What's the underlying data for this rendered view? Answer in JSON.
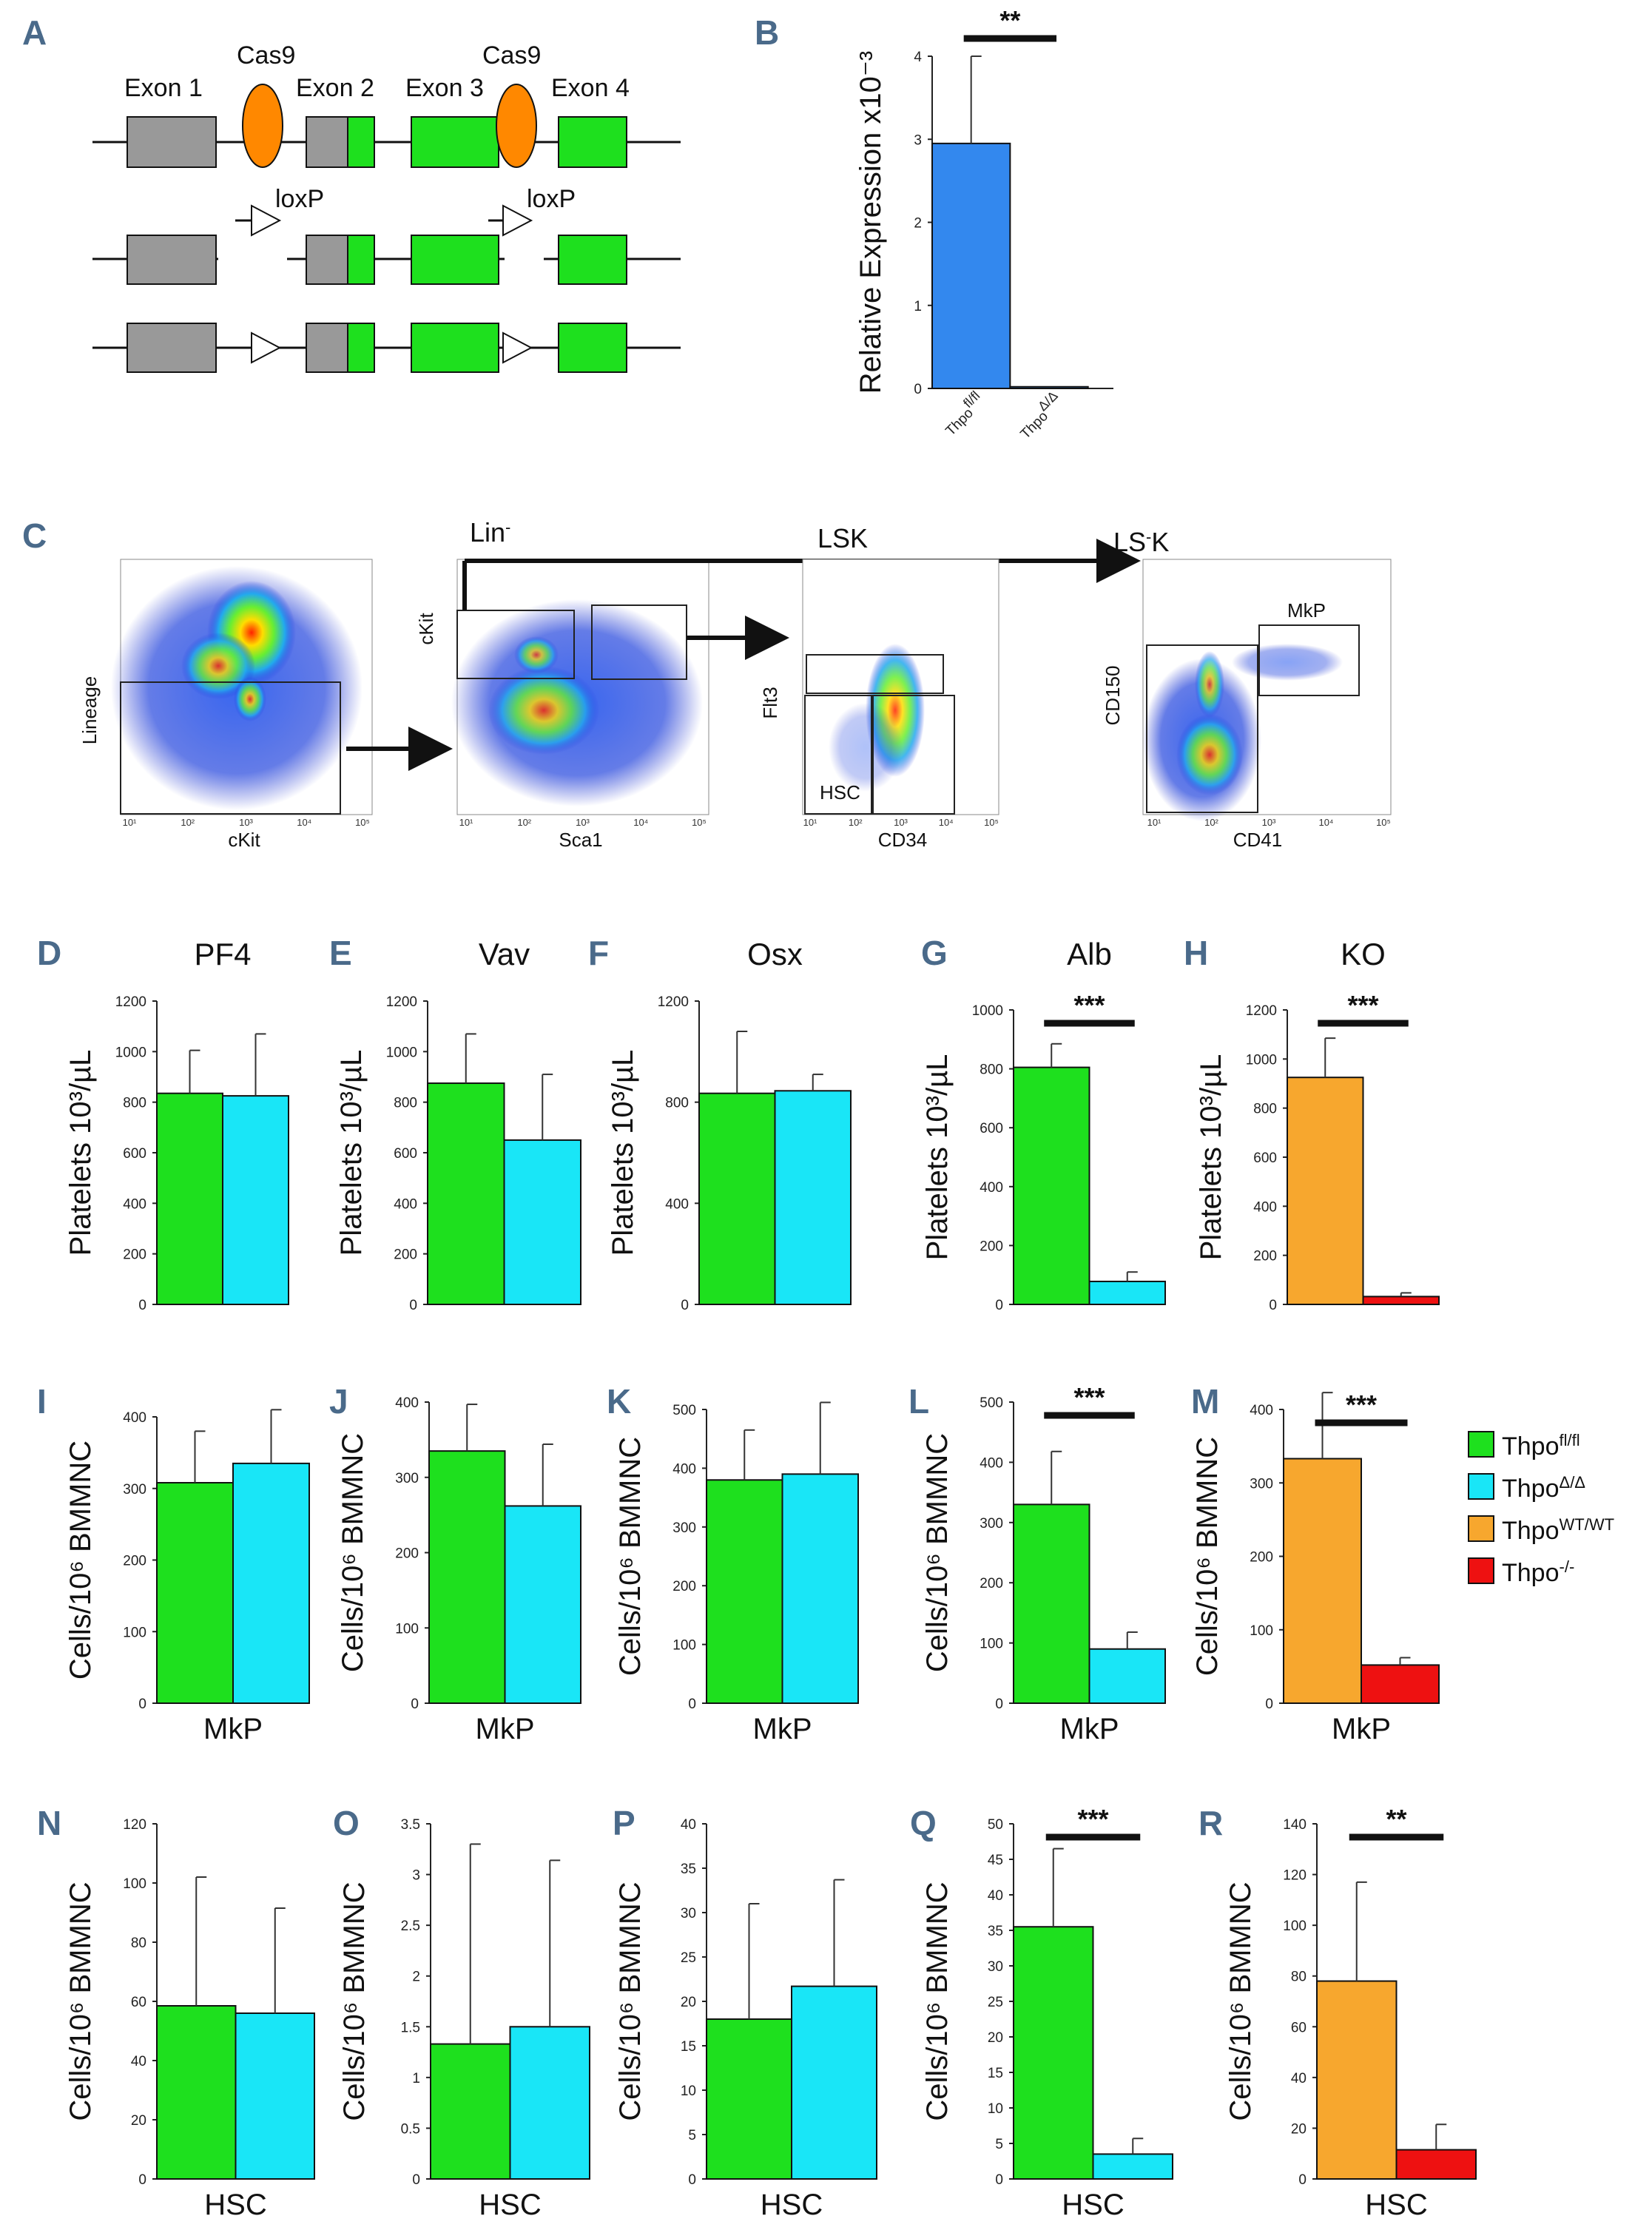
{
  "panel_labels": {
    "a": "A",
    "b": "B",
    "c": "C",
    "d": "D",
    "e": "E",
    "f": "F",
    "g": "G",
    "h": "H",
    "i": "I",
    "j": "J",
    "k": "K",
    "l": "L",
    "m": "M",
    "n": "N",
    "o": "O",
    "p": "P",
    "q": "Q",
    "r": "R"
  },
  "colors": {
    "fl": "#1ee01e",
    "delta": "#19e6f7",
    "wt": "#f7a72e",
    "ko": "#ee1111",
    "blue": "#3388ee",
    "grey": "#999999",
    "green": "#1ee01e",
    "orange": "#ff8800"
  },
  "legend": [
    {
      "key": "fl",
      "base": "Thpo",
      "sup": "fl/fl"
    },
    {
      "key": "delta",
      "base": "Thpo",
      "sup": "Δ/Δ"
    },
    {
      "key": "wt",
      "base": "Thpo",
      "sup": "WT/WT"
    },
    {
      "key": "ko",
      "base": "Thpo",
      "sup": "-/-"
    }
  ],
  "diagram": {
    "exon1": "Exon 1",
    "exon2": "Exon 2",
    "exon3": "Exon 3",
    "exon4": "Exon 4",
    "cas9_a": "Cas9",
    "cas9_b": "Cas9",
    "loxp_a": "loxP",
    "loxp_b": "loxP"
  },
  "flow": {
    "lin": "Lin",
    "lin_sup": "-",
    "lsk": "LSK",
    "lsk2": "LS",
    "lsk2_sup": "-",
    "lsk2_end": "K",
    "p1_y": "Lineage",
    "p1_x": "cKit",
    "p2_y": "cKit",
    "p2_x": "Sca1",
    "p3_y": "Flt3",
    "p3_x": "CD34",
    "p4_y": "CD150",
    "p4_x": "CD41",
    "hsc": "HSC",
    "mkp": "MkP",
    "ticks": [
      "10¹",
      "10²",
      "10³",
      "10⁴",
      "10⁵"
    ]
  },
  "chart_data": [
    {
      "id": "B",
      "type": "bar",
      "title": "",
      "ylabel": "Relative Expression x10⁻³",
      "ylim": [
        0,
        4
      ],
      "yticks": [
        "0",
        "1",
        "2",
        "3",
        "4"
      ],
      "categories": [
        "Thpo fl/fl",
        "Thpo Δ/Δ"
      ],
      "cat_base": [
        "Thpo",
        "Thpo"
      ],
      "cat_sup": [
        "fl/fl",
        "Δ/Δ"
      ],
      "values": [
        2.95,
        0.02
      ],
      "errors": [
        1.05,
        0
      ],
      "colors": [
        "blue",
        "blue"
      ],
      "sig": "**",
      "xlabel": ""
    },
    {
      "id": "D",
      "type": "bar",
      "title": "PF4",
      "ylabel": "Platelets 10³/µL",
      "ylim": [
        0,
        1200
      ],
      "yticks": [
        "0",
        "200",
        "400",
        "600",
        "800",
        "1000",
        "1200"
      ],
      "categories": [
        "Thpo fl/fl",
        "Thpo Δ/Δ"
      ],
      "values": [
        835,
        825
      ],
      "errors": [
        170,
        245
      ],
      "colors": [
        "fl",
        "delta"
      ],
      "sig": "",
      "xlabel": ""
    },
    {
      "id": "E",
      "type": "bar",
      "title": "Vav",
      "ylabel": "Platelets 10³/µL",
      "ylim": [
        0,
        1200
      ],
      "yticks": [
        "0",
        "200",
        "400",
        "600",
        "800",
        "1000",
        "1200"
      ],
      "categories": [
        "Thpo fl/fl",
        "Thpo Δ/Δ"
      ],
      "values": [
        875,
        650
      ],
      "errors": [
        195,
        260
      ],
      "colors": [
        "fl",
        "delta"
      ],
      "sig": "",
      "xlabel": ""
    },
    {
      "id": "F",
      "type": "bar",
      "title": "Osx",
      "ylabel": "Platelets 10³/µL",
      "ylim": [
        0,
        1200
      ],
      "yticks": [
        "0",
        "400",
        "800",
        "1200"
      ],
      "categories": [
        "Thpo fl/fl",
        "Thpo Δ/Δ"
      ],
      "values": [
        835,
        845
      ],
      "errors": [
        245,
        65
      ],
      "colors": [
        "fl",
        "delta"
      ],
      "sig": "",
      "xlabel": ""
    },
    {
      "id": "G",
      "type": "bar",
      "title": "Alb",
      "ylabel": "Platelets 10³/µL",
      "ylim": [
        0,
        1000
      ],
      "yticks": [
        "0",
        "200",
        "400",
        "600",
        "800",
        "1000"
      ],
      "categories": [
        "Thpo fl/fl",
        "Thpo Δ/Δ"
      ],
      "values": [
        805,
        78
      ],
      "errors": [
        80,
        32
      ],
      "colors": [
        "fl",
        "delta"
      ],
      "sig": "***",
      "xlabel": ""
    },
    {
      "id": "H",
      "type": "bar",
      "title": "KO",
      "ylabel": "Platelets 10³/µL",
      "ylim": [
        0,
        1200
      ],
      "yticks": [
        "0",
        "200",
        "400",
        "600",
        "800",
        "1000",
        "1200"
      ],
      "categories": [
        "Thpo WT/WT",
        "Thpo -/-"
      ],
      "values": [
        925,
        32
      ],
      "errors": [
        160,
        15
      ],
      "colors": [
        "wt",
        "ko"
      ],
      "sig": "***",
      "xlabel": ""
    },
    {
      "id": "I",
      "type": "bar",
      "title": "",
      "ylabel": "Cells/10⁶ BMMNC",
      "ylim": [
        0,
        400
      ],
      "yticks": [
        "0",
        "100",
        "200",
        "300",
        "400"
      ],
      "categories": [
        "Thpo fl/fl",
        "Thpo Δ/Δ"
      ],
      "values": [
        308,
        335
      ],
      "errors": [
        72,
        75
      ],
      "colors": [
        "fl",
        "delta"
      ],
      "sig": "",
      "xlabel": "MkP"
    },
    {
      "id": "J",
      "type": "bar",
      "title": "",
      "ylabel": "Cells/10⁶ BMMNC",
      "ylim": [
        0,
        400
      ],
      "yticks": [
        "0",
        "100",
        "200",
        "300",
        "400"
      ],
      "categories": [
        "Thpo fl/fl",
        "Thpo Δ/Δ"
      ],
      "values": [
        335,
        262
      ],
      "errors": [
        62,
        82
      ],
      "colors": [
        "fl",
        "delta"
      ],
      "sig": "",
      "xlabel": "MkP"
    },
    {
      "id": "K",
      "type": "bar",
      "title": "",
      "ylabel": "Cells/10⁶ BMMNC",
      "ylim": [
        0,
        500
      ],
      "yticks": [
        "0",
        "100",
        "200",
        "300",
        "400",
        "500"
      ],
      "categories": [
        "Thpo fl/fl",
        "Thpo Δ/Δ"
      ],
      "values": [
        380,
        390
      ],
      "errors": [
        85,
        122
      ],
      "colors": [
        "fl",
        "delta"
      ],
      "sig": "",
      "xlabel": "MkP"
    },
    {
      "id": "L",
      "type": "bar",
      "title": "",
      "ylabel": "Cells/10⁶ BMMNC",
      "ylim": [
        0,
        500
      ],
      "yticks": [
        "0",
        "100",
        "200",
        "300",
        "400",
        "500"
      ],
      "categories": [
        "Thpo fl/fl",
        "Thpo Δ/Δ"
      ],
      "values": [
        330,
        90
      ],
      "errors": [
        88,
        28
      ],
      "colors": [
        "fl",
        "delta"
      ],
      "sig": "***",
      "xlabel": "MkP"
    },
    {
      "id": "M",
      "type": "bar",
      "title": "",
      "ylabel": "Cells/10⁶ BMMNC",
      "ylim": [
        0,
        400
      ],
      "yticks": [
        "0",
        "100",
        "200",
        "300",
        "400"
      ],
      "categories": [
        "Thpo WT/WT",
        "Thpo -/-"
      ],
      "values": [
        333,
        52
      ],
      "errors": [
        90,
        10
      ],
      "colors": [
        "wt",
        "ko"
      ],
      "sig": "***",
      "xlabel": "MkP"
    },
    {
      "id": "N",
      "type": "bar",
      "title": "",
      "ylabel": "Cells/10⁶ BMMNC",
      "ylim": [
        0,
        120
      ],
      "yticks": [
        "0",
        "20",
        "40",
        "60",
        "80",
        "100",
        "120"
      ],
      "categories": [
        "Thpo fl/fl",
        "Thpo Δ/Δ"
      ],
      "values": [
        58.5,
        56
      ],
      "errors": [
        43.5,
        35.5
      ],
      "colors": [
        "fl",
        "delta"
      ],
      "sig": "",
      "xlabel": "HSC"
    },
    {
      "id": "O",
      "type": "bar",
      "title": "",
      "ylabel": "Cells/10⁶ BMMNC",
      "ylim": [
        0,
        3.5
      ],
      "yticks": [
        "0",
        "0.5",
        "1",
        "1.5",
        "2",
        "2.5",
        "3",
        "3.5"
      ],
      "categories": [
        "Thpo fl/fl",
        "Thpo Δ/Δ"
      ],
      "values": [
        1.33,
        1.5
      ],
      "errors": [
        1.97,
        1.64
      ],
      "colors": [
        "fl",
        "delta"
      ],
      "sig": "",
      "xlabel": "HSC"
    },
    {
      "id": "P",
      "type": "bar",
      "title": "",
      "ylabel": "Cells/10⁶ BMMNC",
      "ylim": [
        0,
        40
      ],
      "yticks": [
        "0",
        "5",
        "10",
        "15",
        "20",
        "25",
        "30",
        "35",
        "40"
      ],
      "categories": [
        "Thpo fl/fl",
        "Thpo Δ/Δ"
      ],
      "values": [
        18,
        21.7
      ],
      "errors": [
        13,
        12
      ],
      "colors": [
        "fl",
        "delta"
      ],
      "sig": "",
      "xlabel": "HSC"
    },
    {
      "id": "Q",
      "type": "bar",
      "title": "",
      "ylabel": "Cells/10⁶ BMMNC",
      "ylim": [
        0,
        50
      ],
      "yticks": [
        "0",
        "5",
        "10",
        "15",
        "20",
        "25",
        "30",
        "35",
        "40",
        "45",
        "50"
      ],
      "categories": [
        "Thpo fl/fl",
        "Thpo Δ/Δ"
      ],
      "values": [
        35.5,
        3.5
      ],
      "errors": [
        11,
        2.2
      ],
      "colors": [
        "fl",
        "delta"
      ],
      "sig": "***",
      "xlabel": "HSC"
    },
    {
      "id": "R",
      "type": "bar",
      "title": "",
      "ylabel": "Cells/10⁶ BMMNC",
      "ylim": [
        0,
        140
      ],
      "yticks": [
        "0",
        "20",
        "40",
        "60",
        "80",
        "100",
        "120",
        "140"
      ],
      "categories": [
        "Thpo WT/WT",
        "Thpo -/-"
      ],
      "values": [
        78,
        11.5
      ],
      "errors": [
        39,
        10
      ],
      "colors": [
        "wt",
        "ko"
      ],
      "sig": "**",
      "xlabel": "HSC"
    }
  ]
}
